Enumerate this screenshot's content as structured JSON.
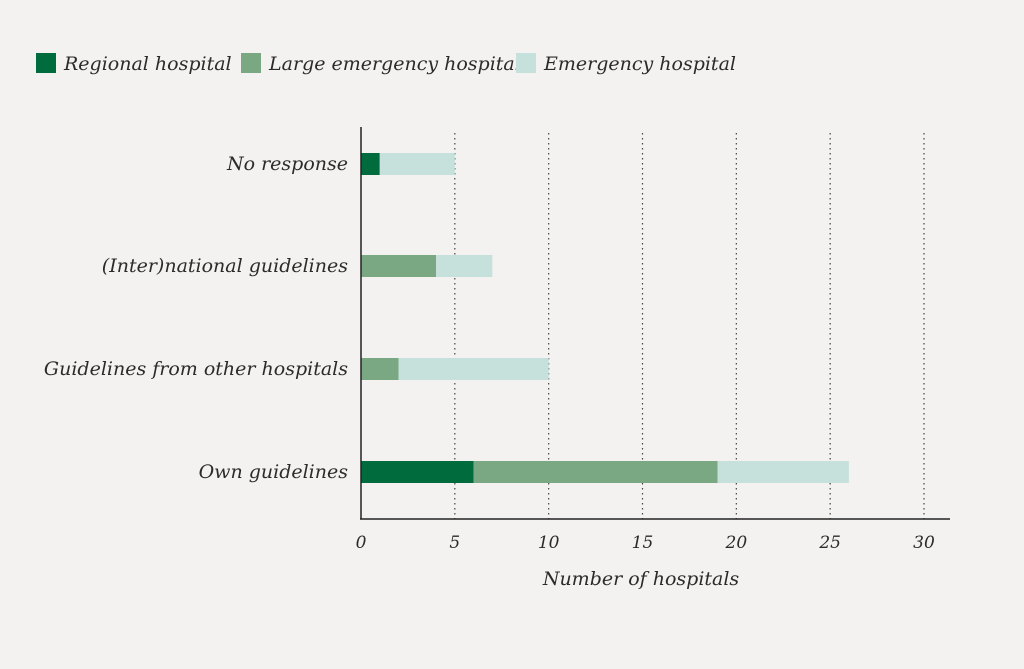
{
  "chart_data": {
    "type": "bar",
    "orientation": "horizontal",
    "stacked": true,
    "title": "",
    "xlabel": "Number of hospitals",
    "ylabel": "",
    "xlim": [
      0,
      30
    ],
    "xticks": [
      0,
      5,
      10,
      15,
      20,
      25,
      30
    ],
    "grid": "vertical dotted",
    "legend_position": "top-left",
    "categories": [
      "No response",
      "(Inter)national guidelines",
      "Guidelines from other hospitals",
      "Own guidelines"
    ],
    "series": [
      {
        "name": "Regional hospital",
        "color": "#006b3c",
        "values": [
          1,
          0,
          0,
          6
        ]
      },
      {
        "name": "Large emergency hospital",
        "color": "#7aa882",
        "values": [
          0,
          4,
          2,
          13
        ]
      },
      {
        "name": "Emergency hospital",
        "color": "#c6e0db",
        "values": [
          4,
          3,
          8,
          7
        ]
      }
    ]
  }
}
